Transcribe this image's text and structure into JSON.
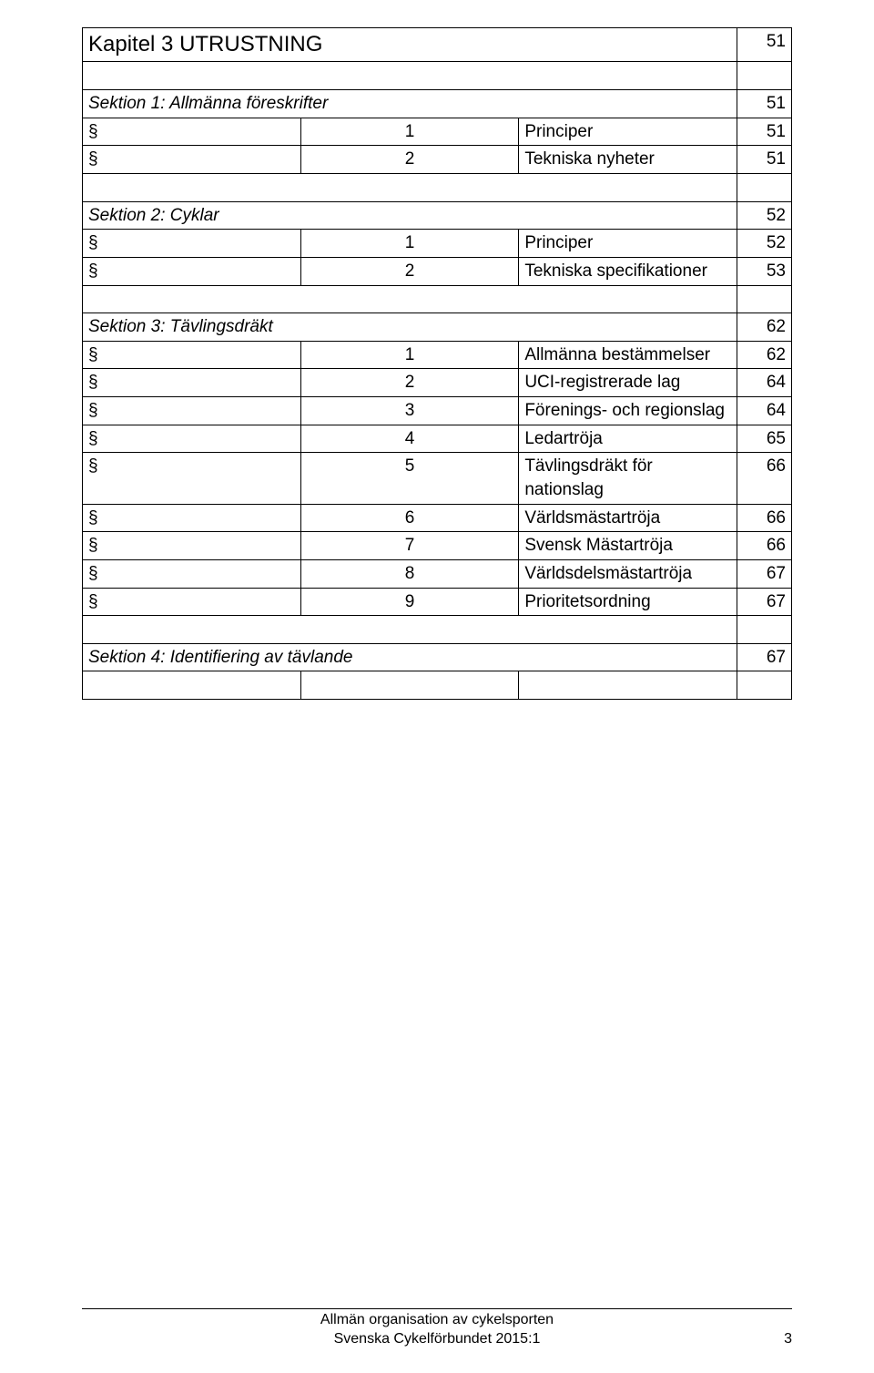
{
  "symbol": "§",
  "chapter": {
    "title": "Kapitel 3 UTRUSTNING",
    "page": "51"
  },
  "sections": [
    {
      "title": "Sektion 1: Allmänna föreskrifter",
      "page": "51",
      "items": [
        {
          "num": "1",
          "title": "Principer",
          "page": "51"
        },
        {
          "num": "2",
          "title": "Tekniska nyheter",
          "page": "51"
        }
      ]
    },
    {
      "title": "Sektion 2: Cyklar",
      "page": "52",
      "items": [
        {
          "num": "1",
          "title": "Principer",
          "page": "52"
        },
        {
          "num": "2",
          "title": "Tekniska specifikationer",
          "page": "53"
        }
      ]
    },
    {
      "title": "Sektion 3: Tävlingsdräkt",
      "page": "62",
      "items": [
        {
          "num": "1",
          "title": "Allmänna bestämmelser",
          "page": "62"
        },
        {
          "num": "2",
          "title": "UCI-registrerade lag",
          "page": "64"
        },
        {
          "num": "3",
          "title": "Förenings- och regionslag",
          "page": "64"
        },
        {
          "num": "4",
          "title": "Ledartröja",
          "page": "65"
        },
        {
          "num": "5",
          "title": "Tävlingsdräkt för nationslag",
          "page": "66"
        },
        {
          "num": "6",
          "title": "Världsmästartröja",
          "page": "66"
        },
        {
          "num": "7",
          "title": "Svensk Mästartröja",
          "page": "66"
        },
        {
          "num": "8",
          "title": "Världsdelsmästartröja",
          "page": "67"
        },
        {
          "num": "9",
          "title": "Prioritetsordning",
          "page": "67"
        }
      ]
    },
    {
      "title": "Sektion 4: Identifiering av tävlande",
      "page": "67",
      "items": []
    }
  ],
  "footer": {
    "line1": "Allmän organisation av cykelsporten",
    "line2": "Svenska Cykelförbundet 2015:1",
    "pagenum": "3"
  }
}
